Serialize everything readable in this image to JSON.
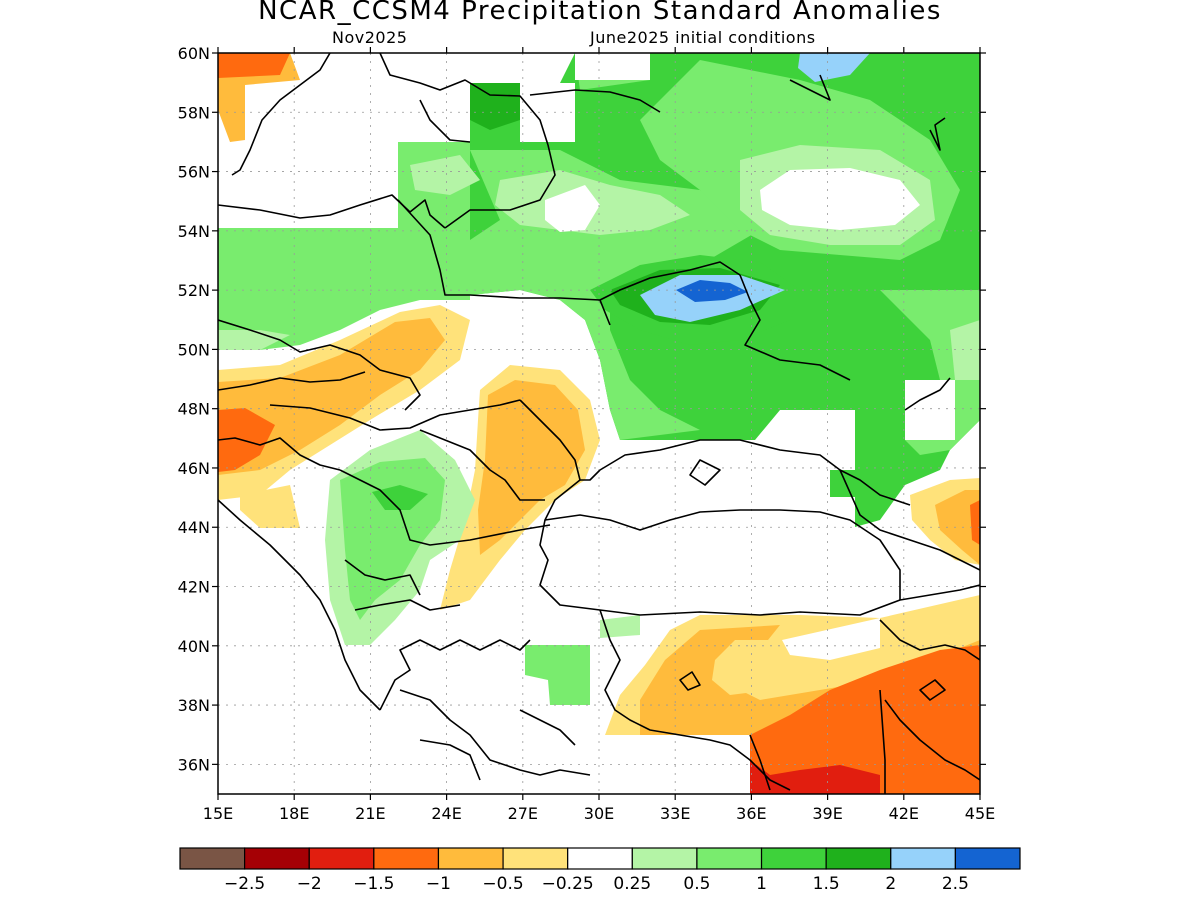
{
  "title": "NCAR_CCSM4 Precipitation Standard Anomalies",
  "subtitle_left": "Nov2025",
  "subtitle_right": "June2025 initial conditions",
  "axes": {
    "lon_labels": [
      "15E",
      "18E",
      "21E",
      "24E",
      "27E",
      "30E",
      "33E",
      "36E",
      "39E",
      "42E",
      "45E"
    ],
    "lat_labels": [
      "60N",
      "58N",
      "56N",
      "54N",
      "52N",
      "50N",
      "48N",
      "46N",
      "44N",
      "42N",
      "40N",
      "38N",
      "36N"
    ]
  },
  "colors": {
    "br": "#7a5545",
    "dr": "#a50005",
    "r": "#e11e0f",
    "o": "#ff6a0f",
    "lo": "#ffbb3c",
    "y": "#ffe27a",
    "pg": "#b4f4a6",
    "lg": "#79ec6e",
    "g": "#3ed23b",
    "dg": "#1fb11c",
    "lb": "#96d2fa",
    "b": "#1464d2"
  },
  "colorbar": {
    "swatches": [
      "#7a5545",
      "#a50005",
      "#e11e0f",
      "#ff6a0f",
      "#ffbb3c",
      "#ffe27a",
      "#ffffff",
      "#b4f4a6",
      "#79ec6e",
      "#3ed23b",
      "#1fb11c",
      "#96d2fa",
      "#1464d2"
    ],
    "labels": [
      "−2.5",
      "−2",
      "−1.5",
      "−1",
      "−0.5",
      "−0.25",
      "0.25",
      "0.5",
      "1",
      "1.5",
      "2",
      "2.5"
    ]
  }
}
